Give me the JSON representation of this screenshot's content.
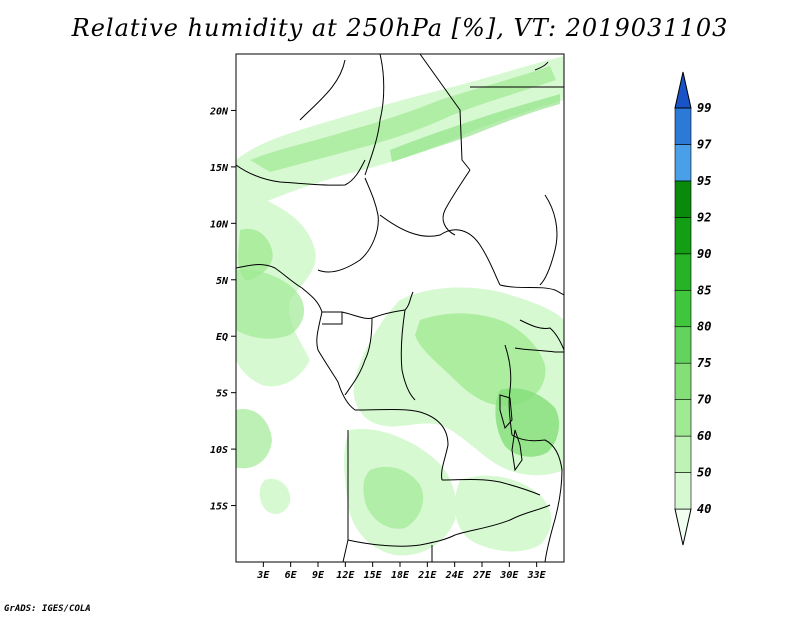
{
  "title": "Relative humidity at 250hPa [%], VT: 2019031103",
  "credit": "GrADS: IGES/COLA",
  "map": {
    "type": "filled-contour",
    "variable": "Relative humidity",
    "level": "250hPa",
    "units": "%",
    "valid_time": "2019031103",
    "lon_range": [
      0,
      36
    ],
    "lat_range": [
      -20,
      25
    ],
    "y_ticks": [
      "20N",
      "15N",
      "10N",
      "5N",
      "EQ",
      "5S",
      "10S",
      "15S"
    ],
    "x_ticks": [
      "3E",
      "6E",
      "9E",
      "12E",
      "15E",
      "18E",
      "21E",
      "24E",
      "27E",
      "30E",
      "33E"
    ],
    "background_color": "#ffffff",
    "border_color": "#000000"
  },
  "colorbar": {
    "levels": [
      "40",
      "50",
      "60",
      "70",
      "75",
      "80",
      "85",
      "90",
      "92",
      "95",
      "97",
      "99"
    ],
    "colors": [
      "#f0fff0",
      "#d7f9d2",
      "#bff3b6",
      "#a1ea94",
      "#85df79",
      "#62d35d",
      "#40c63c",
      "#28b225",
      "#139e13",
      "#0a8a0a",
      "#4aa0e8",
      "#2c7ad8",
      "#1a52c8"
    ]
  }
}
